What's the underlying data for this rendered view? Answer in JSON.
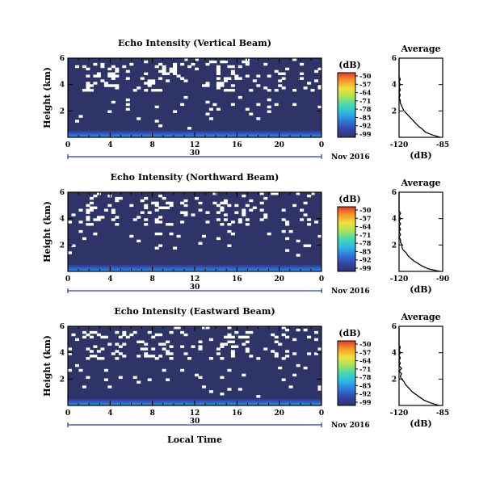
{
  "figure": {
    "xlabel": "Local Time",
    "date_label": "Nov 2016",
    "axis_color": "#000000",
    "bg_echo_color": "#2f3468",
    "gap_color": "#ffffff"
  },
  "chart_data": [
    {
      "type": "heatmap",
      "title": "Echo Intensity (Vertical Beam)",
      "ylabel": "Height (km)",
      "yticks": [
        "2",
        "4",
        "6"
      ],
      "ylim": [
        0,
        6
      ],
      "xticks": [
        "0",
        "4",
        "8",
        "12",
        "16",
        "20",
        "0"
      ],
      "xlim": [
        0,
        24
      ],
      "day_label": "30",
      "colorbar_title": "(dB)",
      "colorbar_ticks": [
        "-50",
        "-57",
        "-64",
        "-71",
        "-78",
        "-85",
        "-92",
        "-99"
      ],
      "clim": [
        -99,
        -50
      ],
      "average": {
        "title": "Average",
        "xlabel": "(dB)",
        "xticks": [
          "-120",
          "-85"
        ],
        "xlim": [
          -120,
          -85
        ],
        "yticks": [
          "2",
          "4",
          "6"
        ],
        "ylim": [
          0,
          6
        ],
        "profile": [
          {
            "h": 0.0,
            "db": -87
          },
          {
            "h": 0.2,
            "db": -94
          },
          {
            "h": 0.4,
            "db": -99
          },
          {
            "h": 0.6,
            "db": -101
          },
          {
            "h": 0.8,
            "db": -104
          },
          {
            "h": 1.0,
            "db": -106
          },
          {
            "h": 1.2,
            "db": -108
          },
          {
            "h": 1.4,
            "db": -110
          },
          {
            "h": 1.6,
            "db": -112
          },
          {
            "h": 1.8,
            "db": -114
          },
          {
            "h": 2.0,
            "db": -116
          },
          {
            "h": 2.2,
            "db": -117
          },
          {
            "h": 2.4,
            "db": -118
          },
          {
            "h": 2.6,
            "db": -119
          },
          {
            "h": 2.8,
            "db": -119
          },
          {
            "h": 3.0,
            "db": -120
          },
          {
            "h": 3.2,
            "db": -119
          },
          {
            "h": 3.4,
            "db": -120
          },
          {
            "h": 3.6,
            "db": -119
          },
          {
            "h": 3.8,
            "db": -120
          },
          {
            "h": 4.0,
            "db": -119
          },
          {
            "h": 4.2,
            "db": -120
          },
          {
            "h": 4.4,
            "db": -119
          },
          {
            "h": 4.6,
            "db": -120
          },
          {
            "h": 5.0,
            "db": -120
          },
          {
            "h": 5.5,
            "db": -120
          },
          {
            "h": 6.0,
            "db": -120
          }
        ]
      }
    },
    {
      "type": "heatmap",
      "title": "Echo Intensity (Northward Beam)",
      "ylabel": "Height (km)",
      "yticks": [
        "2",
        "4",
        "6"
      ],
      "ylim": [
        0,
        6
      ],
      "xticks": [
        "0",
        "4",
        "8",
        "12",
        "16",
        "20",
        "0"
      ],
      "xlim": [
        0,
        24
      ],
      "day_label": "30",
      "colorbar_title": "(dB)",
      "colorbar_ticks": [
        "-50",
        "-57",
        "-64",
        "-71",
        "-78",
        "-85",
        "-92",
        "-99"
      ],
      "clim": [
        -99,
        -50
      ],
      "average": {
        "title": "Average",
        "xlabel": "(dB)",
        "xticks": [
          "-120",
          "-90"
        ],
        "xlim": [
          -120,
          -90
        ],
        "yticks": [
          "2",
          "4",
          "6"
        ],
        "ylim": [
          0,
          6
        ],
        "profile": [
          {
            "h": 0.0,
            "db": -92
          },
          {
            "h": 0.2,
            "db": -100
          },
          {
            "h": 0.4,
            "db": -104
          },
          {
            "h": 0.6,
            "db": -107
          },
          {
            "h": 0.8,
            "db": -110
          },
          {
            "h": 1.0,
            "db": -112
          },
          {
            "h": 1.2,
            "db": -114
          },
          {
            "h": 1.4,
            "db": -115
          },
          {
            "h": 1.6,
            "db": -117
          },
          {
            "h": 1.8,
            "db": -118
          },
          {
            "h": 2.0,
            "db": -118
          },
          {
            "h": 2.2,
            "db": -119
          },
          {
            "h": 2.4,
            "db": -119
          },
          {
            "h": 2.6,
            "db": -120
          },
          {
            "h": 2.8,
            "db": -119
          },
          {
            "h": 3.0,
            "db": -120
          },
          {
            "h": 3.2,
            "db": -119
          },
          {
            "h": 3.4,
            "db": -120
          },
          {
            "h": 3.6,
            "db": -119
          },
          {
            "h": 3.8,
            "db": -120
          },
          {
            "h": 4.0,
            "db": -119
          },
          {
            "h": 4.2,
            "db": -120
          },
          {
            "h": 4.4,
            "db": -119
          },
          {
            "h": 4.6,
            "db": -120
          },
          {
            "h": 5.0,
            "db": -120
          },
          {
            "h": 5.5,
            "db": -120
          },
          {
            "h": 6.0,
            "db": -120
          }
        ]
      }
    },
    {
      "type": "heatmap",
      "title": "Echo Intensity (Eastward Beam)",
      "ylabel": "Height (km)",
      "yticks": [
        "2",
        "4",
        "6"
      ],
      "ylim": [
        0,
        6
      ],
      "xticks": [
        "0",
        "4",
        "8",
        "12",
        "16",
        "20",
        "0"
      ],
      "xlim": [
        0,
        24
      ],
      "day_label": "30",
      "colorbar_title": "(dB)",
      "colorbar_ticks": [
        "-50",
        "-57",
        "-64",
        "-71",
        "-78",
        "-85",
        "-92",
        "-99"
      ],
      "clim": [
        -99,
        -50
      ],
      "average": {
        "title": "Average",
        "xlabel": "(dB)",
        "xticks": [
          "-120",
          "-85"
        ],
        "xlim": [
          -120,
          -85
        ],
        "yticks": [
          "2",
          "4",
          "6"
        ],
        "ylim": [
          0,
          6
        ],
        "profile": [
          {
            "h": 0.0,
            "db": -88
          },
          {
            "h": 0.2,
            "db": -95
          },
          {
            "h": 0.4,
            "db": -100
          },
          {
            "h": 0.6,
            "db": -103
          },
          {
            "h": 0.8,
            "db": -106
          },
          {
            "h": 1.0,
            "db": -109
          },
          {
            "h": 1.2,
            "db": -111
          },
          {
            "h": 1.4,
            "db": -113
          },
          {
            "h": 1.6,
            "db": -115
          },
          {
            "h": 1.8,
            "db": -116
          },
          {
            "h": 2.0,
            "db": -118
          },
          {
            "h": 2.2,
            "db": -119
          },
          {
            "h": 2.4,
            "db": -118
          },
          {
            "h": 2.6,
            "db": -120
          },
          {
            "h": 2.8,
            "db": -118
          },
          {
            "h": 3.0,
            "db": -120
          },
          {
            "h": 3.2,
            "db": -119
          },
          {
            "h": 3.4,
            "db": -120
          },
          {
            "h": 3.6,
            "db": -119
          },
          {
            "h": 3.8,
            "db": -120
          },
          {
            "h": 4.0,
            "db": -119
          },
          {
            "h": 4.2,
            "db": -120
          },
          {
            "h": 4.4,
            "db": -119
          },
          {
            "h": 4.6,
            "db": -120
          },
          {
            "h": 5.0,
            "db": -120
          },
          {
            "h": 5.5,
            "db": -120
          },
          {
            "h": 6.0,
            "db": -120
          }
        ]
      }
    }
  ]
}
